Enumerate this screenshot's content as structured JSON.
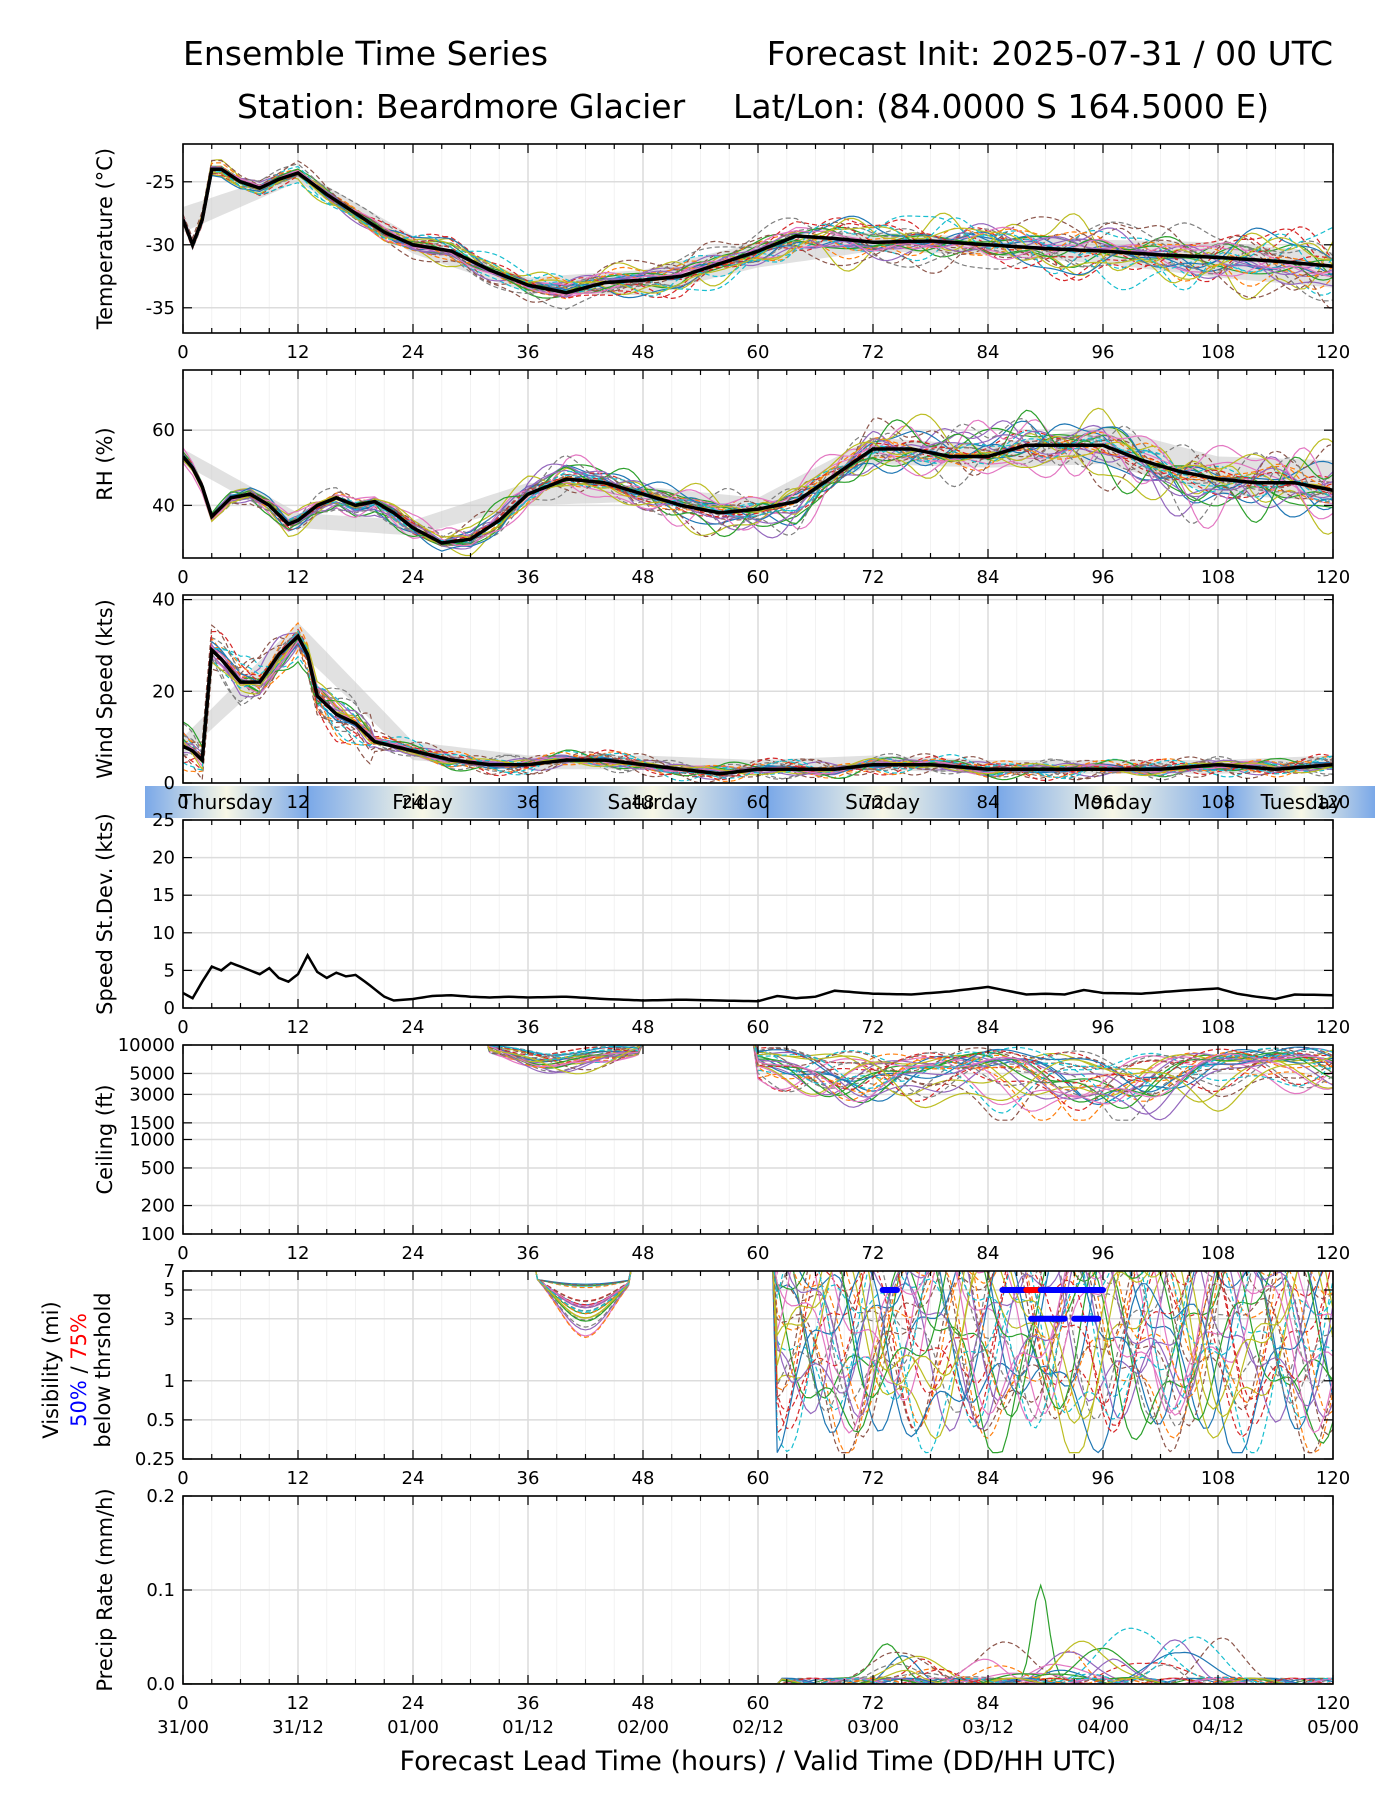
{
  "header": {
    "title_left": "Ensemble Time Series",
    "title_right": "Forecast Init: 2025-07-31 / 00 UTC",
    "station": "Station: Beardmore Glacier",
    "latlon": "Lat/Lon: (84.0000 S 164.5000 E)"
  },
  "xaxis": {
    "label": "Forecast Lead Time (hours) / Valid Time (DD/HH UTC)",
    "range": [
      0,
      120
    ],
    "ticks": [
      0,
      12,
      24,
      36,
      48,
      60,
      72,
      84,
      96,
      108,
      120
    ],
    "valid_times": [
      "31/00",
      "31/12",
      "01/00",
      "01/12",
      "02/00",
      "02/12",
      "03/00",
      "03/12",
      "04/00",
      "04/12",
      "05/00"
    ]
  },
  "day_band": {
    "days": [
      {
        "label": "Thursday",
        "start": -4.5,
        "end": 13
      },
      {
        "label": "Friday",
        "start": 13,
        "end": 37
      },
      {
        "label": "Saturday",
        "start": 37,
        "end": 61
      },
      {
        "label": "Sunday",
        "start": 61,
        "end": 85
      },
      {
        "label": "Monday",
        "start": 85,
        "end": 109
      },
      {
        "label": "Tuesday",
        "start": 109,
        "end": 125
      }
    ],
    "boundaries": [
      13,
      37,
      61,
      85,
      109
    ]
  },
  "colors": {
    "mean": "#000000",
    "spread_band": "#c8c8c8",
    "threshold_50": "#0000ff",
    "threshold_75": "#ff0000",
    "members": [
      "#1f77b4",
      "#ff7f0e",
      "#2ca02c",
      "#d62728",
      "#9467bd",
      "#8c564b",
      "#e377c2",
      "#7f7f7f",
      "#bcbd22",
      "#17becf"
    ]
  },
  "chart_data": [
    {
      "id": "temperature",
      "type": "line",
      "ylabel": "Temperature (°C)",
      "ylim": [
        -37,
        -22
      ],
      "yticks": [
        -35,
        -30,
        -25
      ],
      "grid": true,
      "ensemble_members": 30,
      "mean": {
        "x": [
          0,
          1,
          2,
          3,
          4,
          6,
          8,
          10,
          12,
          15,
          18,
          21,
          24,
          28,
          32,
          36,
          40,
          44,
          48,
          52,
          56,
          60,
          64,
          68,
          72,
          78,
          84,
          90,
          96,
          102,
          108,
          114,
          120
        ],
        "y": [
          -28,
          -30,
          -28,
          -24,
          -24,
          -25,
          -25.5,
          -24.8,
          -24.3,
          -26,
          -27.5,
          -29,
          -30,
          -30.5,
          -32,
          -33.2,
          -33.8,
          -33,
          -32.8,
          -32.5,
          -31.5,
          -30.5,
          -29.3,
          -29.5,
          -29.8,
          -29.7,
          -30,
          -30.3,
          -30.5,
          -30.8,
          -31,
          -31.3,
          -31.7
        ]
      },
      "spread": {
        "x": [
          0,
          12,
          24,
          36,
          48,
          60,
          72,
          84,
          96,
          108,
          120
        ],
        "upper": [
          -27,
          -24,
          -29.3,
          -32.6,
          -32,
          -29.8,
          -29,
          -29.4,
          -29.6,
          -29.8,
          -30.6
        ],
        "lower": [
          -29,
          -25,
          -30.7,
          -33.8,
          -34,
          -31.8,
          -30.5,
          -30.8,
          -31.5,
          -32.6,
          -33.4
        ]
      }
    },
    {
      "id": "rh",
      "type": "line",
      "ylabel": "RH (%)",
      "ylim": [
        26,
        76
      ],
      "yticks": [
        40,
        60
      ],
      "grid": true,
      "ensemble_members": 30,
      "mean": {
        "x": [
          0,
          1,
          2,
          3,
          5,
          7,
          9,
          11,
          12,
          14,
          16,
          18,
          20,
          22,
          24,
          27,
          30,
          33,
          36,
          40,
          44,
          48,
          52,
          56,
          60,
          64,
          68,
          72,
          76,
          80,
          84,
          88,
          92,
          96,
          100,
          104,
          108,
          112,
          116,
          120
        ],
        "y": [
          53,
          50,
          45,
          37,
          42,
          43,
          40,
          35,
          36,
          40,
          42,
          40,
          41,
          38,
          34,
          30,
          31,
          36,
          43,
          47,
          46,
          43,
          40,
          38,
          39,
          41,
          48,
          55,
          55,
          53,
          53,
          56,
          56,
          56,
          52,
          49,
          47,
          46,
          46,
          44
        ]
      },
      "spread": {
        "x": [
          0,
          12,
          24,
          36,
          48,
          60,
          72,
          84,
          96,
          108,
          120
        ],
        "upper": [
          55,
          38,
          36,
          46,
          45,
          42,
          58,
          56,
          61,
          53,
          52
        ],
        "lower": [
          51,
          34,
          32,
          40,
          41,
          37,
          51,
          50,
          51,
          43,
          41
        ]
      }
    },
    {
      "id": "wind_speed",
      "type": "line",
      "ylabel": "Wind Speed (kts)",
      "ylim": [
        0,
        41
      ],
      "yticks": [
        0,
        20,
        40
      ],
      "grid": true,
      "ensemble_members": 30,
      "mean": {
        "x": [
          0,
          1,
          2,
          3,
          4,
          6,
          8,
          10,
          12,
          13,
          14,
          16,
          18,
          20,
          22,
          24,
          28,
          32,
          36,
          40,
          44,
          48,
          52,
          56,
          60,
          64,
          68,
          72,
          78,
          84,
          90,
          96,
          102,
          108,
          114,
          120
        ],
        "y": [
          8,
          7,
          5,
          29,
          27,
          22,
          22,
          28,
          32,
          28,
          19,
          15,
          13,
          9,
          8,
          7,
          5,
          4,
          4,
          5,
          5,
          4,
          3,
          2,
          3,
          3,
          3,
          4,
          4,
          3,
          3,
          3,
          3,
          4,
          3,
          4
        ]
      },
      "spread": {
        "x": [
          0,
          12,
          24,
          36,
          48,
          60,
          72,
          84,
          96,
          108,
          120
        ],
        "upper": [
          10,
          35,
          9,
          6,
          6,
          5,
          6,
          5,
          5,
          5,
          6
        ],
        "lower": [
          6,
          29,
          5,
          3,
          3,
          2,
          3,
          2,
          2,
          2,
          3
        ]
      }
    },
    {
      "id": "speed_stdev",
      "type": "line",
      "ylabel": "Speed St.Dev. (kts)",
      "ylim": [
        0,
        25
      ],
      "yticks": [
        0,
        5,
        10,
        15,
        20,
        25
      ],
      "grid": true,
      "series": [
        {
          "x": [
            0,
            1,
            2,
            3,
            4,
            5,
            6,
            7,
            8,
            9,
            10,
            11,
            12,
            13,
            14,
            15,
            16,
            17,
            18,
            19,
            20,
            21,
            22,
            24,
            26,
            28,
            30,
            32,
            34,
            36,
            40,
            44,
            48,
            52,
            56,
            60,
            62,
            64,
            66,
            68,
            70,
            72,
            76,
            80,
            84,
            86,
            88,
            90,
            92,
            94,
            96,
            100,
            104,
            108,
            110,
            112,
            114,
            116,
            120
          ],
          "y": [
            2,
            1.3,
            3.5,
            5.5,
            5,
            6,
            5.5,
            5,
            4.5,
            5.3,
            4,
            3.5,
            4.5,
            7,
            4.8,
            4,
            4.7,
            4.2,
            4.4,
            3.5,
            2.5,
            1.5,
            1,
            1.2,
            1.6,
            1.7,
            1.5,
            1.4,
            1.5,
            1.4,
            1.5,
            1.2,
            1,
            1.1,
            1,
            0.9,
            1.6,
            1.3,
            1.5,
            2.3,
            2.1,
            1.9,
            1.8,
            2.2,
            2.8,
            2.3,
            1.8,
            1.9,
            1.8,
            2.4,
            2,
            1.9,
            2.3,
            2.6,
            1.9,
            1.5,
            1.2,
            1.8,
            1.7
          ]
        }
      ]
    },
    {
      "id": "ceiling",
      "type": "line",
      "ylabel": "Ceiling (ft)",
      "yscale": "log",
      "ylim": [
        100,
        10000
      ],
      "yticks": [
        100,
        200,
        500,
        1000,
        1500,
        3000,
        5000,
        10000
      ],
      "grid": true,
      "ensemble_members": 30,
      "note_range": {
        "start": 32,
        "end": 120,
        "min": 1600
      }
    },
    {
      "id": "visibility",
      "type": "line",
      "ylabel": "Visibility (mi)",
      "ylabel_50": "50%",
      "ylabel_sep": " / ",
      "ylabel_75": "75%",
      "ylabel_sub": "below thrshold",
      "yscale": "log",
      "ylim": [
        0.25,
        7
      ],
      "yticks": [
        0.25,
        0.5,
        1,
        3,
        5,
        7
      ],
      "grid": true,
      "ensemble_members": 30,
      "threshold_markers": [
        {
          "level": 5,
          "color": "blue",
          "start": 73,
          "end": 74.5
        },
        {
          "level": 5,
          "color": "blue",
          "start": 85.5,
          "end": 88
        },
        {
          "level": 5,
          "color": "red",
          "start": 88,
          "end": 89.5
        },
        {
          "level": 5,
          "color": "blue",
          "start": 89.5,
          "end": 96
        },
        {
          "level": 3,
          "color": "blue",
          "start": 88.5,
          "end": 92
        },
        {
          "level": 3,
          "color": "blue",
          "start": 93,
          "end": 95.5
        }
      ]
    },
    {
      "id": "precip",
      "type": "line",
      "ylabel": "Precip Rate (mm/h)",
      "ylim": [
        0,
        0.2
      ],
      "yticks": [
        0.0,
        0.1,
        0.2
      ],
      "ytick_labels": [
        "0.0",
        "0.1",
        "0.2"
      ],
      "grid": true,
      "ensemble_members": 30,
      "peak": {
        "x": 89.5,
        "y": 0.105
      }
    }
  ]
}
